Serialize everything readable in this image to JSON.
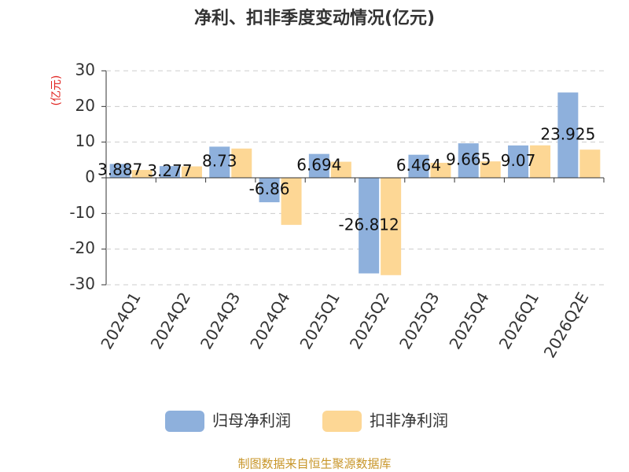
{
  "chart_data": {
    "type": "bar",
    "title": "净利、扣非季度变动情况(亿元)",
    "y_label": "(亿元)",
    "categories": [
      "2024Q1",
      "2024Q2",
      "2024Q3",
      "2024Q4",
      "2025Q1",
      "2025Q2",
      "2025Q3",
      "2025Q4",
      "2026Q1",
      "2026Q2E"
    ],
    "series": [
      {
        "name": "归母净利润",
        "color": "#8eb0dc",
        "values": [
          3.887,
          3.277,
          8.73,
          -6.86,
          6.694,
          -26.812,
          6.464,
          9.665,
          9.07,
          23.925
        ]
      },
      {
        "name": "扣非净利润",
        "color": "#fdd795",
        "values": [
          2.2,
          3.2,
          8.2,
          -13.2,
          4.5,
          -27.3,
          4.2,
          4.6,
          9.1,
          7.9
        ]
      }
    ],
    "ylim": [
      -30,
      30
    ],
    "yticks": [
      -30,
      -20,
      -10,
      0,
      10,
      20,
      30
    ],
    "grid": true,
    "source": "制图数据来自恒生聚源数据库"
  }
}
